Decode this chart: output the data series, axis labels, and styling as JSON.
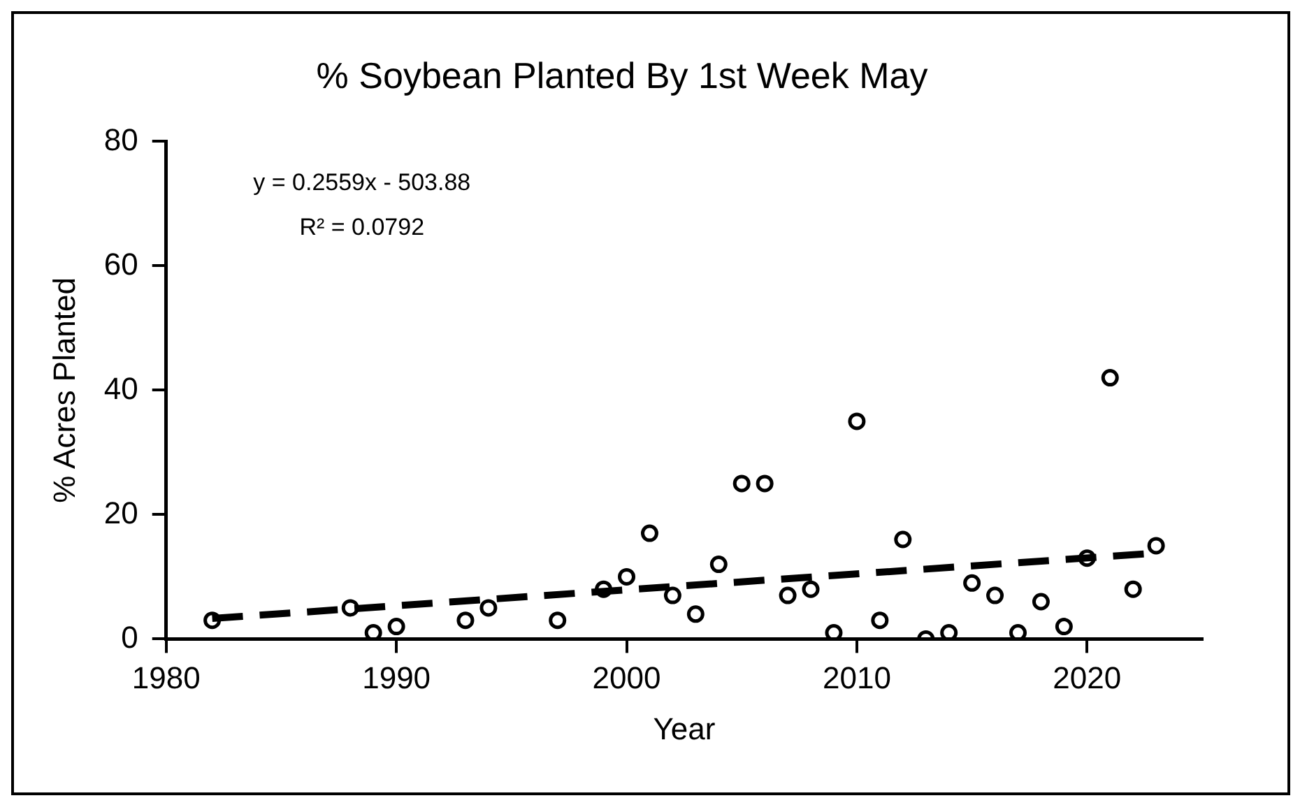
{
  "chart_data": {
    "type": "scatter",
    "title": "% Soybean Planted By 1st Week May",
    "xlabel": "Year",
    "ylabel": "% Acres Planted",
    "xlim": [
      1980,
      2025
    ],
    "xticks": [
      1980,
      1990,
      2000,
      2010,
      2020
    ],
    "ylim": [
      0,
      80
    ],
    "yticks": [
      0,
      20,
      40,
      60,
      80
    ],
    "grid": false,
    "legend": false,
    "marker": "circle",
    "annotations": [
      "y = 0.2559x - 503.88",
      "R² = 0.0792"
    ],
    "series": [
      {
        "color": "#000000",
        "x": [
          1982,
          1988,
          1989,
          1990,
          1993,
          1994,
          1997,
          1999,
          2000,
          2001,
          2002,
          2003,
          2004,
          2005,
          2006,
          2007,
          2008,
          2009,
          2010,
          2011,
          2012,
          2013,
          2014,
          2015,
          2016,
          2017,
          2018,
          2019,
          2020,
          2021,
          2022,
          2023
        ],
        "values": [
          3,
          5,
          1,
          2,
          3,
          5,
          3,
          8,
          10,
          17,
          7,
          4,
          12,
          25,
          25,
          7,
          8,
          1,
          35,
          3,
          16,
          0,
          1,
          9,
          7,
          1,
          6,
          2,
          13,
          42,
          8,
          15
        ]
      },
      {
        "type": "line",
        "color": "#000000",
        "marker": "none",
        "line_style": "dashed",
        "x": [
          1982,
          2023
        ],
        "values": [
          3.3,
          13.8
        ]
      }
    ]
  }
}
